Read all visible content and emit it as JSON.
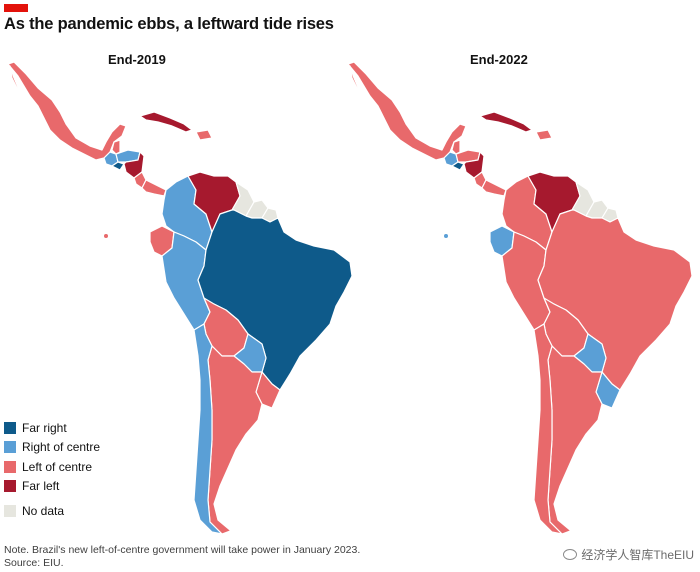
{
  "header": {
    "accent_color": "#e3120b",
    "title": "As the pandemic ebbs, a leftward tide rises"
  },
  "maps": {
    "left_label": "End-2019",
    "right_label": "End-2022"
  },
  "legend": {
    "items": [
      {
        "label": "Far right",
        "color": "#0e5a8a"
      },
      {
        "label": "Right of centre",
        "color": "#5a9fd6"
      },
      {
        "label": "Left of centre",
        "color": "#e8696b"
      },
      {
        "label": "Far left",
        "color": "#a6192e"
      },
      {
        "label": "No data",
        "color": "#e6e6df"
      }
    ]
  },
  "footer": {
    "note": "Note. Brazil's new left-of-centre government will take power in January 2023.",
    "source": "Source: EIU.",
    "watermark": "经济学人智库TheEIU"
  },
  "map_data": {
    "End-2019": {
      "Mexico": "Left of centre",
      "Guatemala": "Right of centre",
      "Belize": "Left of centre",
      "Honduras": "Right of centre",
      "El Salvador": "Far right",
      "Nicaragua": "Far left",
      "Costa Rica": "Left of centre",
      "Panama": "Left of centre",
      "Cuba": "Far left",
      "Dominican Republic": "Left of centre",
      "Colombia": "Right of centre",
      "Venezuela": "Far left",
      "Guyana": "No data",
      "Suriname": "No data",
      "French Guiana": "No data",
      "Ecuador": "Left of centre",
      "Peru": "Right of centre",
      "Brazil": "Far right",
      "Bolivia": "Left of centre",
      "Paraguay": "Right of centre",
      "Chile": "Right of centre",
      "Argentina": "Left of centre",
      "Uruguay": "Left of centre"
    },
    "End-2022": {
      "Mexico": "Left of centre",
      "Guatemala": "Right of centre",
      "Belize": "Left of centre",
      "Honduras": "Left of centre",
      "El Salvador": "Far right",
      "Nicaragua": "Far left",
      "Costa Rica": "Left of centre",
      "Panama": "Left of centre",
      "Cuba": "Far left",
      "Dominican Republic": "Left of centre",
      "Colombia": "Left of centre",
      "Venezuela": "Far left",
      "Guyana": "No data",
      "Suriname": "No data",
      "French Guiana": "No data",
      "Ecuador": "Right of centre",
      "Peru": "Left of centre",
      "Brazil": "Left of centre",
      "Bolivia": "Left of centre",
      "Paraguay": "Right of centre",
      "Chile": "Left of centre",
      "Argentina": "Left of centre",
      "Uruguay": "Right of centre"
    }
  }
}
